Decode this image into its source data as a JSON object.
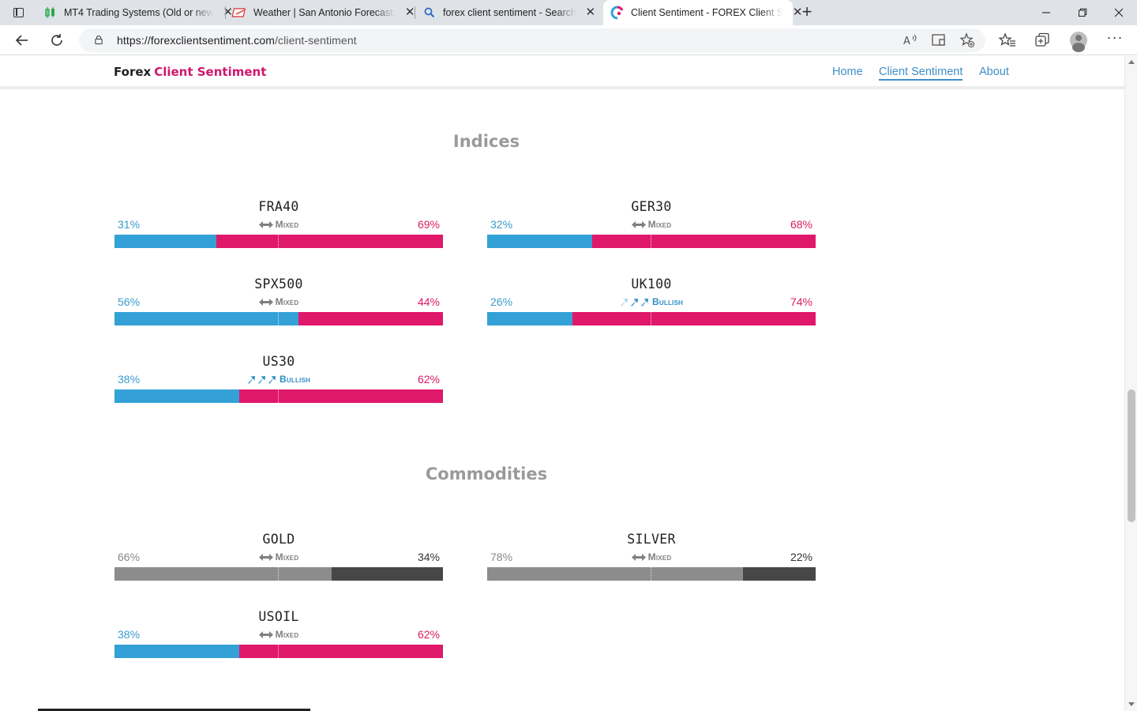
{
  "browser": {
    "tabs": [
      {
        "title": "MT4 Trading Systems (Old or new",
        "icon": "candlestick-icon",
        "active": false
      },
      {
        "title": "Weather | San Antonio Forecast,",
        "icon": "weather-logo-icon",
        "active": false
      },
      {
        "title": "forex client sentiment - Search",
        "icon": "search-icon",
        "active": false
      },
      {
        "title": "Client Sentiment - FOREX Client S",
        "icon": "site-logo-icon",
        "active": true
      }
    ],
    "url_host": "https://forexclientsentiment.com",
    "url_path": "/client-sentiment",
    "close_glyph": "✕",
    "new_tab_glyph": "+",
    "more_glyph": "···"
  },
  "site": {
    "brand_part1": "Forex",
    "brand_part2": "Client Sentiment",
    "nav": [
      {
        "label": "Home",
        "active": false
      },
      {
        "label": "Client Sentiment",
        "active": true
      },
      {
        "label": "About",
        "active": false
      }
    ]
  },
  "sections": [
    {
      "title": "Indices",
      "cards": [
        {
          "symbol": "FRA40",
          "long_pct": "31%",
          "short_pct": "69%",
          "long": 31,
          "sentiment": "Mixed",
          "type": "mixed",
          "palette": "color"
        },
        {
          "symbol": "GER30",
          "long_pct": "32%",
          "short_pct": "68%",
          "long": 32,
          "sentiment": "Mixed",
          "type": "mixed",
          "palette": "color"
        },
        {
          "symbol": "SPX500",
          "long_pct": "56%",
          "short_pct": "44%",
          "long": 56,
          "sentiment": "Mixed",
          "type": "mixed",
          "palette": "color"
        },
        {
          "symbol": "UK100",
          "long_pct": "26%",
          "short_pct": "74%",
          "long": 26,
          "sentiment": "Bullish",
          "type": "bullish",
          "arrows": 2,
          "palette": "color"
        },
        {
          "symbol": "US30",
          "long_pct": "38%",
          "short_pct": "62%",
          "long": 38,
          "sentiment": "Bullish",
          "type": "bullish",
          "arrows": 3,
          "palette": "color"
        }
      ]
    },
    {
      "title": "Commodities",
      "cards": [
        {
          "symbol": "GOLD",
          "long_pct": "66%",
          "short_pct": "34%",
          "long": 66,
          "sentiment": "Mixed",
          "type": "mixed",
          "palette": "gray"
        },
        {
          "symbol": "SILVER",
          "long_pct": "78%",
          "short_pct": "22%",
          "long": 78,
          "sentiment": "Mixed",
          "type": "mixed",
          "palette": "gray"
        },
        {
          "symbol": "USOIL",
          "long_pct": "38%",
          "short_pct": "62%",
          "long": 38,
          "sentiment": "Mixed",
          "type": "mixed",
          "palette": "color"
        }
      ]
    }
  ],
  "colors": {
    "long": "#34a1d6",
    "short": "#e0186a",
    "gray_long": "#8c8c8c",
    "gray_short": "#474747",
    "accent": "#d0166a",
    "link": "#3f8fc9"
  }
}
